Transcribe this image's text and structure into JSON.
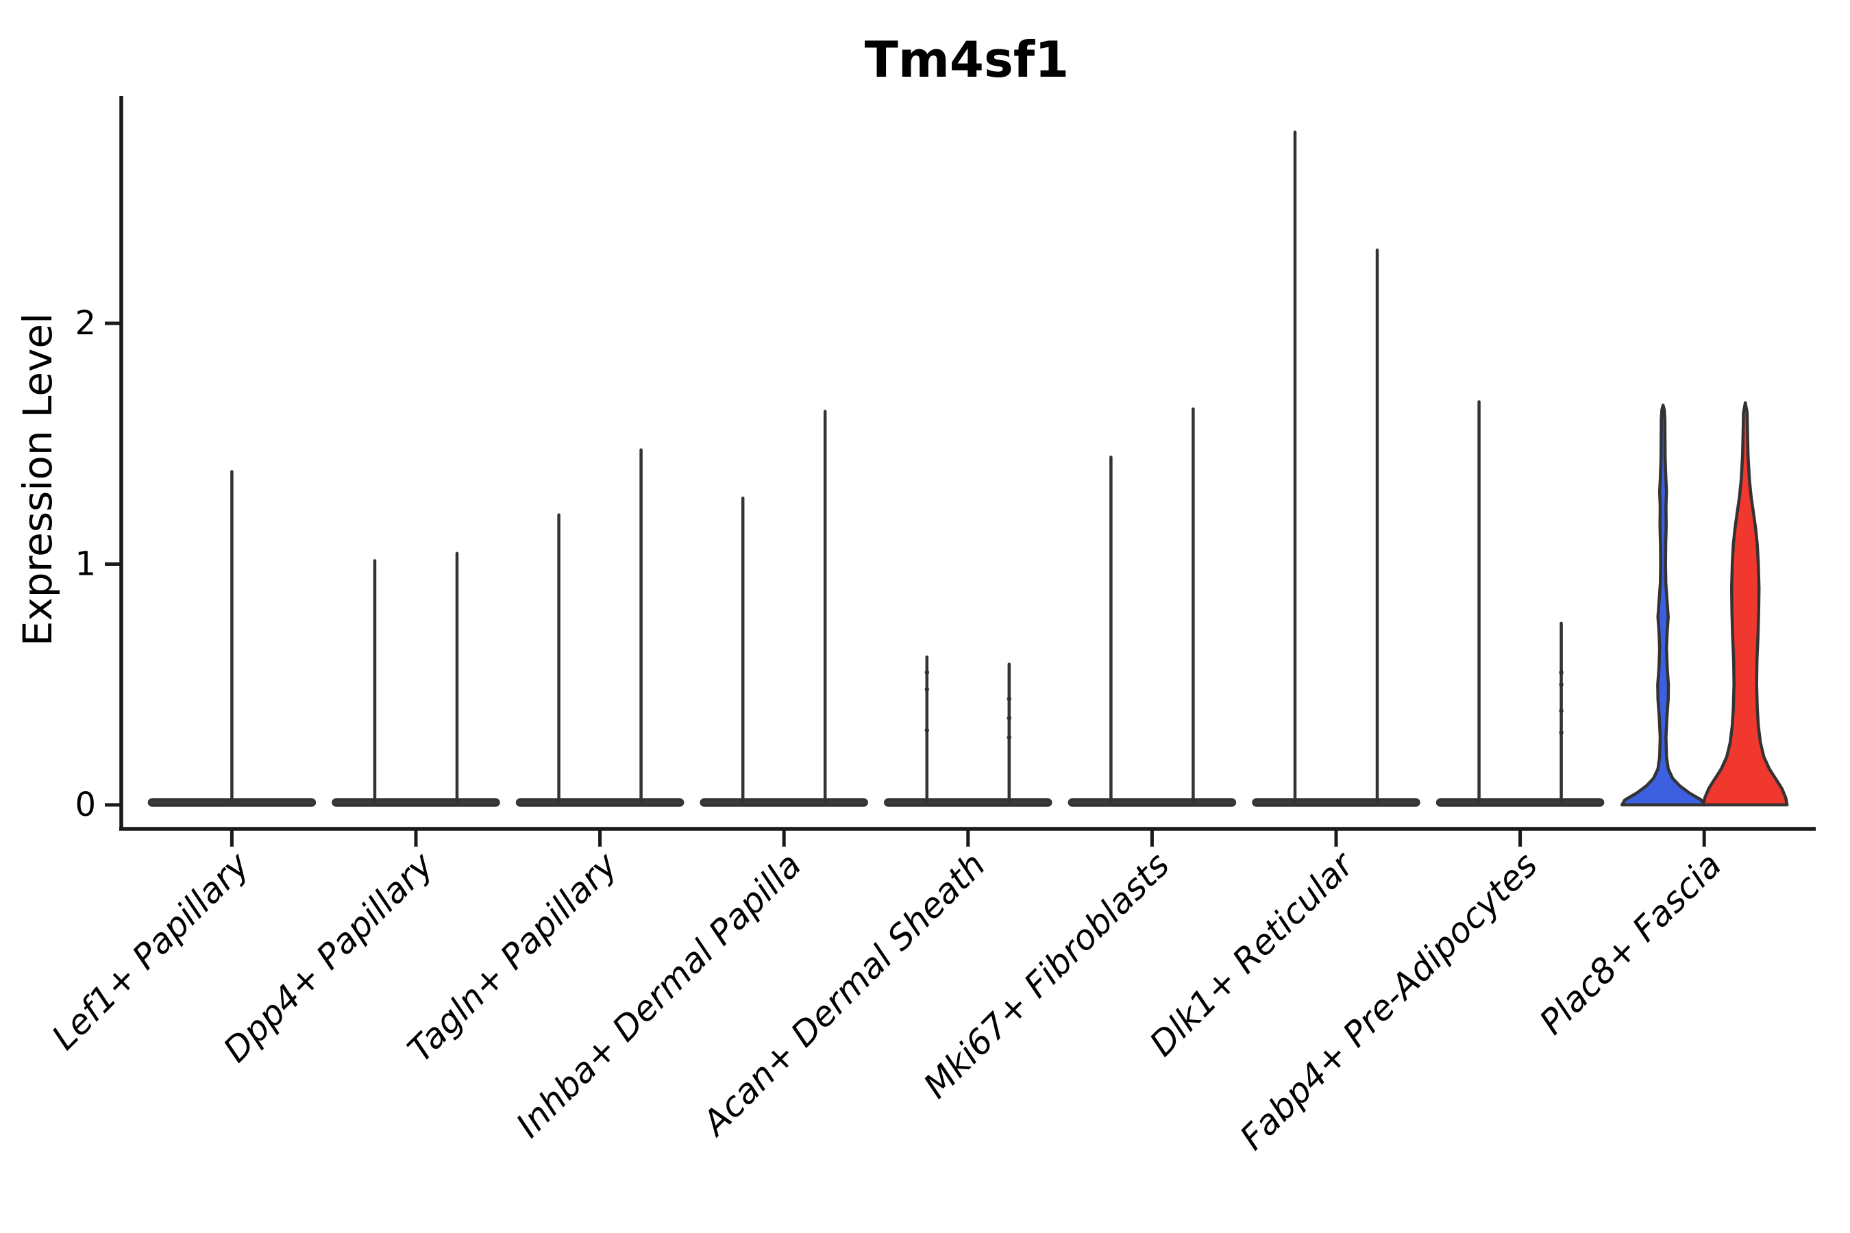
{
  "chart_data": {
    "type": "violin",
    "title": "Tm4sf1",
    "ylabel": "Expression Level",
    "xlabel": "",
    "yticks": [
      0,
      1,
      2
    ],
    "ylim": [
      -0.09,
      2.94
    ],
    "grid": false,
    "legend": "none",
    "categories": [
      "Lef1+ Papillary",
      "Dpp4+ Papillary",
      "Tagln+ Papillary",
      "Inhba+ Dermal Papilla",
      "Acan+ Dermal Sheath",
      "Mki67+ Fibroblasts",
      "Dlk1+ Reticular",
      "Fabp4+ Pre-Adipocytes",
      "Plac8+ Fascia"
    ],
    "split_colors": {
      "left": "#3C60E0",
      "right": "#F0382E"
    },
    "outline_color": "#333333",
    "axis_color": "#1a1a1a",
    "groups": [
      {
        "category": "Lef1+ Papillary",
        "violins": [
          {
            "side": "center",
            "max": 1.39,
            "dots": []
          }
        ]
      },
      {
        "category": "Dpp4+ Papillary",
        "violins": [
          {
            "side": "left",
            "max": 1.02,
            "dots": []
          },
          {
            "side": "right",
            "max": 1.05,
            "dots": []
          }
        ]
      },
      {
        "category": "Tagln+ Papillary",
        "violins": [
          {
            "side": "left",
            "max": 1.21,
            "dots": []
          },
          {
            "side": "right",
            "max": 1.48,
            "dots": []
          }
        ]
      },
      {
        "category": "Inhba+ Dermal Papilla",
        "violins": [
          {
            "side": "left",
            "max": 1.28,
            "dots": []
          },
          {
            "side": "right",
            "max": 1.64,
            "dots": []
          }
        ]
      },
      {
        "category": "Acan+ Dermal Sheath",
        "violins": [
          {
            "side": "left",
            "max": 0.62,
            "dots": [
              0.55,
              0.48,
              0.31
            ]
          },
          {
            "side": "right",
            "max": 0.59,
            "dots": [
              0.44,
              0.36,
              0.28
            ]
          }
        ]
      },
      {
        "category": "Mki67+ Fibroblasts",
        "violins": [
          {
            "side": "left",
            "max": 1.45,
            "dots": []
          },
          {
            "side": "right",
            "max": 1.65,
            "dots": []
          }
        ]
      },
      {
        "category": "Dlk1+ Reticular",
        "violins": [
          {
            "side": "left",
            "max": 2.8,
            "dots": []
          },
          {
            "side": "right",
            "max": 2.31,
            "dots": []
          }
        ]
      },
      {
        "category": "Fabp4+ Pre-Adipocytes",
        "violins": [
          {
            "side": "left",
            "max": 1.68,
            "dots": []
          },
          {
            "side": "right",
            "max": 0.76,
            "dots": [
              0.55,
              0.5,
              0.39,
              0.3
            ]
          }
        ]
      },
      {
        "category": "Plac8+ Fascia",
        "violins": [
          {
            "side": "left",
            "max": 1.66,
            "colored": true,
            "dots": [],
            "profile": [
              [
                0,
                60
              ],
              [
                0.02,
                56
              ],
              [
                0.05,
                38
              ],
              [
                0.08,
                24
              ],
              [
                0.11,
                14
              ],
              [
                0.15,
                7.5
              ],
              [
                0.2,
                5
              ],
              [
                0.28,
                4.2
              ],
              [
                0.36,
                5.5
              ],
              [
                0.44,
                7.5
              ],
              [
                0.5,
                7.8
              ],
              [
                0.57,
                6
              ],
              [
                0.65,
                5
              ],
              [
                0.72,
                6
              ],
              [
                0.78,
                7.5
              ],
              [
                0.84,
                6
              ],
              [
                0.92,
                4
              ],
              [
                1.0,
                3.5
              ],
              [
                1.08,
                3.8
              ],
              [
                1.16,
                4.5
              ],
              [
                1.24,
                4.2
              ],
              [
                1.3,
                5
              ],
              [
                1.36,
                4
              ],
              [
                1.44,
                3
              ],
              [
                1.52,
                2.8
              ],
              [
                1.6,
                2.6
              ],
              [
                1.64,
                1.8
              ],
              [
                1.66,
                0
              ]
            ]
          },
          {
            "side": "right",
            "max": 1.67,
            "colored": true,
            "dots": [],
            "profile": [
              [
                0,
                61
              ],
              [
                0.03,
                59
              ],
              [
                0.07,
                53
              ],
              [
                0.11,
                44
              ],
              [
                0.15,
                35
              ],
              [
                0.2,
                27
              ],
              [
                0.26,
                22
              ],
              [
                0.33,
                19
              ],
              [
                0.4,
                17.5
              ],
              [
                0.5,
                16.5
              ],
              [
                0.6,
                17
              ],
              [
                0.7,
                18.5
              ],
              [
                0.8,
                19.5
              ],
              [
                0.9,
                20
              ],
              [
                1.0,
                19
              ],
              [
                1.08,
                17.5
              ],
              [
                1.15,
                15
              ],
              [
                1.22,
                11.5
              ],
              [
                1.28,
                8.5
              ],
              [
                1.35,
                6
              ],
              [
                1.45,
                4
              ],
              [
                1.55,
                3.2
              ],
              [
                1.63,
                2.6
              ],
              [
                1.67,
                0
              ]
            ]
          }
        ]
      }
    ]
  }
}
